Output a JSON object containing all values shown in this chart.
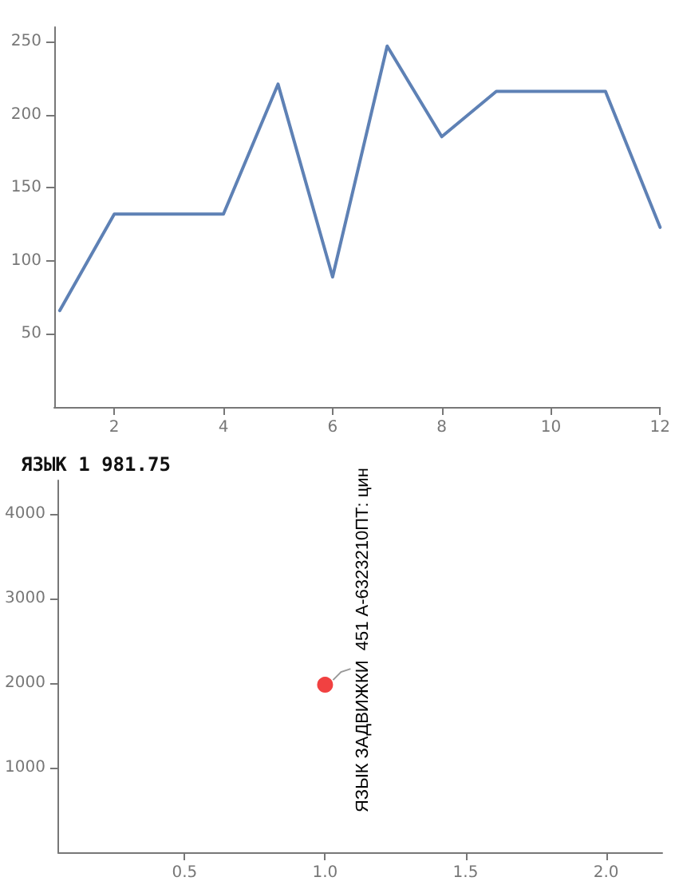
{
  "chart_data": [
    {
      "type": "line",
      "x": [
        1,
        2,
        3,
        4,
        5,
        6,
        7,
        8,
        9,
        10,
        11,
        12
      ],
      "series": [
        {
          "color": "#5e81b5",
          "values": [
            66,
            132,
            132,
            132,
            221,
            89,
            247,
            185,
            216,
            216,
            216,
            123
          ]
        }
      ],
      "xlim": [
        0.9,
        12
      ],
      "xticks": [
        2,
        4,
        6,
        8,
        10,
        12
      ],
      "ylim": [
        0,
        260
      ],
      "yticks": [
        50,
        100,
        150,
        200,
        250
      ],
      "grid": false,
      "marker": "none",
      "line_style": "solid"
    },
    {
      "type": "scatter",
      "title": "ЯЗЫК 1 981.75",
      "x": [
        1
      ],
      "series": [
        {
          "color": "#ee1111",
          "values": [
            1981.75
          ]
        }
      ],
      "annotations": [
        {
          "text": "ЯЗЫК ЗАДВИЖКИ  451 А-6323210ПТ: цин",
          "x": 1,
          "y": 1981.75
        }
      ],
      "xlim": [
        0.05,
        2.2
      ],
      "xticks": [
        {
          "value": 0.5,
          "label": "0.5"
        },
        {
          "value": 1,
          "label": "1.0"
        },
        {
          "value": 1.5,
          "label": "1.5"
        },
        {
          "value": 2,
          "label": "2.0"
        }
      ],
      "ylim": [
        0,
        4400
      ],
      "yticks": [
        1000,
        2000,
        3000,
        4000
      ],
      "grid": false,
      "marker": "circle"
    }
  ]
}
